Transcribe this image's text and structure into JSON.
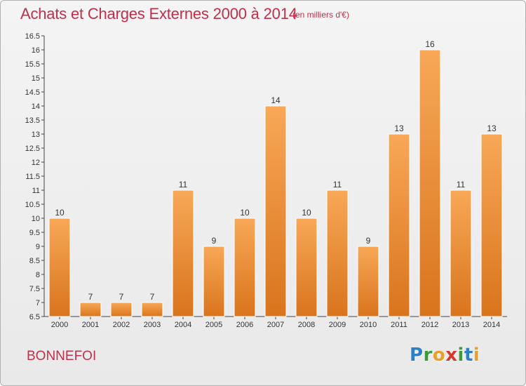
{
  "chart_data": {
    "type": "bar",
    "title": "Achats et Charges Externes 2000 à 2014",
    "unit": "(en milliers d'€)",
    "xlabel": "",
    "ylabel": "",
    "categories": [
      "2000",
      "2001",
      "2002",
      "2003",
      "2004",
      "2005",
      "2006",
      "2007",
      "2008",
      "2009",
      "2010",
      "2011",
      "2012",
      "2013",
      "2014"
    ],
    "values": [
      10,
      7,
      7,
      7,
      11,
      9,
      10,
      14,
      10,
      11,
      9,
      13,
      16,
      11,
      13
    ],
    "ylim": [
      6.5,
      16.5
    ],
    "yticks": [
      "6.5",
      "7",
      "7.5",
      "8",
      "8.5",
      "9",
      "9.5",
      "10",
      "10.5",
      "11",
      "11.5",
      "12",
      "12.5",
      "13",
      "13.5",
      "14",
      "14.5",
      "15",
      "15.5",
      "16",
      "16.5"
    ],
    "grid": false,
    "bar_color": "#f08a2a",
    "legend": "none"
  },
  "commune": "BONNEFOI",
  "logo": {
    "letters": [
      "P",
      "r",
      "o",
      "x",
      "i",
      "t",
      "i"
    ]
  }
}
